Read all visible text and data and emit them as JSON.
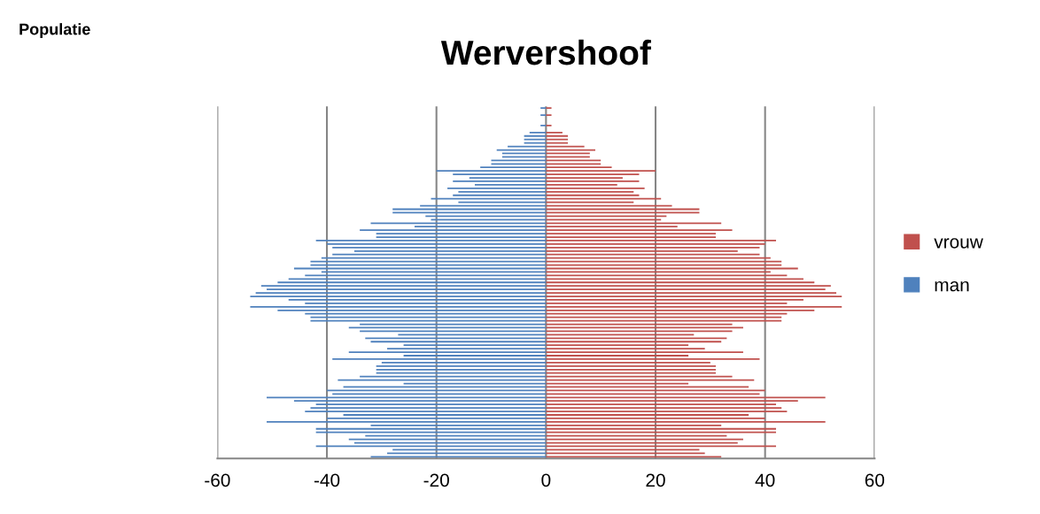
{
  "chart_data": {
    "type": "bar",
    "orientation": "horizontal",
    "title": "Wervershoof",
    "annotations": [
      "Populatie"
    ],
    "categories": [
      null,
      null,
      null,
      null,
      null,
      null,
      null,
      null,
      null,
      null,
      null,
      null,
      null,
      null,
      null,
      null,
      null,
      null,
      null,
      null,
      null,
      null,
      null,
      null,
      null,
      null,
      null,
      null,
      null,
      null,
      null,
      null,
      null,
      null,
      null,
      null,
      null,
      null,
      null,
      null,
      null,
      null,
      null,
      null,
      null,
      null,
      null,
      null,
      null,
      null,
      null,
      null,
      null,
      null,
      null,
      null,
      null,
      null,
      null,
      null,
      null,
      null,
      null,
      null,
      null,
      null,
      null,
      null,
      null,
      null,
      null,
      null,
      null,
      null,
      null,
      null,
      null,
      null,
      null,
      null,
      null,
      null,
      null,
      null,
      null,
      null,
      null,
      null,
      null,
      null,
      null,
      null,
      null,
      null,
      null,
      null,
      null,
      null,
      null,
      null,
      null
    ],
    "series": [
      {
        "name": "vrouw",
        "color": "#c0504d",
        "values": [
          1,
          0,
          1,
          0,
          0,
          1,
          0,
          3,
          4,
          4,
          4,
          7,
          9,
          8,
          8,
          10,
          10,
          12,
          20,
          17,
          14,
          17,
          13,
          18,
          16,
          17,
          21,
          16,
          23,
          28,
          28,
          22,
          21,
          32,
          24,
          34,
          31,
          31,
          42,
          40,
          39,
          35,
          39,
          41,
          43,
          43,
          46,
          41,
          44,
          47,
          49,
          52,
          51,
          53,
          54,
          47,
          44,
          54,
          49,
          44,
          43,
          43,
          34,
          36,
          34,
          27,
          33,
          32,
          26,
          29,
          36,
          26,
          39,
          30,
          31,
          31,
          31,
          34,
          38,
          26,
          37,
          40,
          39,
          51,
          46,
          42,
          43,
          44,
          37,
          40,
          51,
          32,
          42,
          42,
          33,
          36,
          35,
          42,
          28,
          29,
          32
        ]
      },
      {
        "name": "man",
        "color": "#4f81bd",
        "values": [
          -1,
          0,
          -1,
          0,
          0,
          -1,
          0,
          -3,
          -4,
          -4,
          -4,
          -7,
          -9,
          -8,
          -8,
          -10,
          -10,
          -12,
          -20,
          -17,
          -14,
          -17,
          -13,
          -18,
          -16,
          -17,
          -21,
          -16,
          -23,
          -28,
          -28,
          -22,
          -21,
          -32,
          -24,
          -34,
          -31,
          -31,
          -42,
          -40,
          -39,
          -35,
          -39,
          -41,
          -43,
          -43,
          -46,
          -41,
          -44,
          -47,
          -49,
          -52,
          -51,
          -53,
          -54,
          -47,
          -44,
          -54,
          -49,
          -44,
          -43,
          -43,
          -34,
          -36,
          -34,
          -27,
          -33,
          -32,
          -26,
          -29,
          -36,
          -26,
          -39,
          -30,
          -31,
          -31,
          -31,
          -34,
          -38,
          -26,
          -37,
          -40,
          -39,
          -51,
          -46,
          -42,
          -43,
          -44,
          -37,
          -40,
          -51,
          -32,
          -42,
          -42,
          -33,
          -36,
          -35,
          -42,
          -28,
          -29,
          -32
        ]
      }
    ],
    "xlim": [
      -60,
      60
    ],
    "xticks": [
      -60,
      -40,
      -20,
      0,
      20,
      40,
      60
    ],
    "grid": "x",
    "legend": "right",
    "tick_labels": "x"
  }
}
